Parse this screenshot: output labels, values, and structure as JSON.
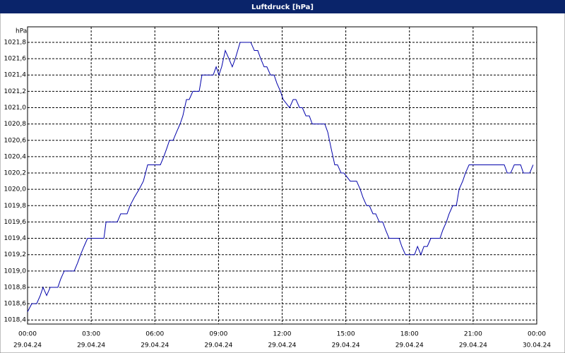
{
  "chart_data": {
    "type": "line",
    "title": "Luftdruck [hPa]",
    "y_unit": "hPa",
    "x": [
      0.0,
      0.2,
      0.43,
      0.6,
      0.73,
      0.9,
      1.07,
      1.43,
      1.56,
      1.73,
      2.2,
      2.36,
      2.5,
      2.66,
      2.83,
      3.6,
      3.7,
      4.23,
      4.39,
      4.69,
      4.83,
      5.03,
      5.26,
      5.46,
      5.66,
      6.26,
      6.42,
      6.56,
      6.69,
      6.86,
      7.02,
      7.19,
      7.32,
      7.49,
      7.62,
      7.79,
      8.09,
      8.22,
      8.75,
      8.89,
      9.02,
      9.15,
      9.32,
      9.49,
      9.65,
      9.79,
      10.02,
      10.52,
      10.69,
      10.85,
      10.99,
      11.15,
      11.28,
      11.45,
      11.62,
      11.75,
      11.92,
      12.05,
      12.35,
      12.52,
      12.65,
      12.82,
      12.95,
      13.12,
      13.28,
      13.42,
      14.01,
      14.15,
      14.31,
      14.48,
      14.61,
      14.78,
      14.91,
      15.21,
      15.51,
      15.68,
      15.81,
      15.98,
      16.11,
      16.28,
      16.41,
      16.58,
      16.74,
      16.88,
      17.04,
      17.51,
      17.64,
      17.81,
      18.24,
      18.38,
      18.54,
      18.68,
      18.84,
      19.01,
      19.44,
      19.57,
      19.74,
      19.87,
      20.04,
      20.21,
      20.34,
      20.51,
      20.64,
      20.81,
      22.47,
      22.61,
      22.77,
      22.94,
      23.24,
      23.37,
      23.67,
      23.83
    ],
    "values": [
      1018.5,
      1018.6,
      1018.6,
      1018.7,
      1018.8,
      1018.7,
      1018.8,
      1018.8,
      1018.9,
      1019.0,
      1019.0,
      1019.1,
      1019.2,
      1019.3,
      1019.4,
      1019.4,
      1019.6,
      1019.6,
      1019.7,
      1019.7,
      1019.8,
      1019.9,
      1020.0,
      1020.1,
      1020.3,
      1020.3,
      1020.4,
      1020.5,
      1020.6,
      1020.6,
      1020.7,
      1020.8,
      1020.9,
      1021.1,
      1021.1,
      1021.2,
      1021.2,
      1021.4,
      1021.4,
      1021.5,
      1021.4,
      1021.5,
      1021.7,
      1021.6,
      1021.5,
      1021.6,
      1021.8,
      1021.8,
      1021.7,
      1021.7,
      1021.6,
      1021.5,
      1021.5,
      1021.4,
      1021.4,
      1021.3,
      1021.2,
      1021.1,
      1021.0,
      1021.1,
      1021.1,
      1021.0,
      1021.0,
      1020.9,
      1020.9,
      1020.8,
      1020.8,
      1020.7,
      1020.5,
      1020.3,
      1020.3,
      1020.2,
      1020.2,
      1020.1,
      1020.1,
      1020.0,
      1019.9,
      1019.8,
      1019.8,
      1019.7,
      1019.7,
      1019.6,
      1019.6,
      1019.5,
      1019.4,
      1019.4,
      1019.3,
      1019.2,
      1019.2,
      1019.3,
      1019.2,
      1019.3,
      1019.3,
      1019.4,
      1019.4,
      1019.5,
      1019.6,
      1019.7,
      1019.8,
      1019.8,
      1020.0,
      1020.1,
      1020.2,
      1020.3,
      1020.3,
      1020.2,
      1020.2,
      1020.3,
      1020.3,
      1020.2,
      1020.2,
      1020.3
    ],
    "color": "#0000aa",
    "xlim": [
      0,
      24
    ],
    "xticks": [
      {
        "value": 0,
        "label": "00:00"
      },
      {
        "value": 3,
        "label": "03:00"
      },
      {
        "value": 6,
        "label": "06:00"
      },
      {
        "value": 9,
        "label": "09:00"
      },
      {
        "value": 12,
        "label": "12:00"
      },
      {
        "value": 15,
        "label": "15:00"
      },
      {
        "value": 18,
        "label": "18:00"
      },
      {
        "value": 21,
        "label": "21:00"
      },
      {
        "value": 24,
        "label": "00:00"
      }
    ],
    "xtick_dates": [
      "29.04.24",
      "29.04.24",
      "29.04.24",
      "29.04.24",
      "29.04.24",
      "29.04.24",
      "29.04.24",
      "29.04.24",
      "30.04.24"
    ],
    "ylim": [
      1018.35,
      1021.99
    ],
    "yticks": [
      {
        "value": 1018.4,
        "label": "1018,4"
      },
      {
        "value": 1018.6,
        "label": "1018,6"
      },
      {
        "value": 1018.8,
        "label": "1018,8"
      },
      {
        "value": 1019.0,
        "label": "1019,0"
      },
      {
        "value": 1019.2,
        "label": "1019,2"
      },
      {
        "value": 1019.4,
        "label": "1019,4"
      },
      {
        "value": 1019.6,
        "label": "1019,6"
      },
      {
        "value": 1019.8,
        "label": "1019,8"
      },
      {
        "value": 1020.0,
        "label": "1020,0"
      },
      {
        "value": 1020.2,
        "label": "1020,2"
      },
      {
        "value": 1020.4,
        "label": "1020,4"
      },
      {
        "value": 1020.6,
        "label": "1020,6"
      },
      {
        "value": 1020.8,
        "label": "1020,8"
      },
      {
        "value": 1021.0,
        "label": "1021,0"
      },
      {
        "value": 1021.2,
        "label": "1021,2"
      },
      {
        "value": 1021.4,
        "label": "1021,4"
      },
      {
        "value": 1021.6,
        "label": "1021,6"
      },
      {
        "value": 1021.8,
        "label": "1021,8"
      }
    ],
    "grid": true
  }
}
